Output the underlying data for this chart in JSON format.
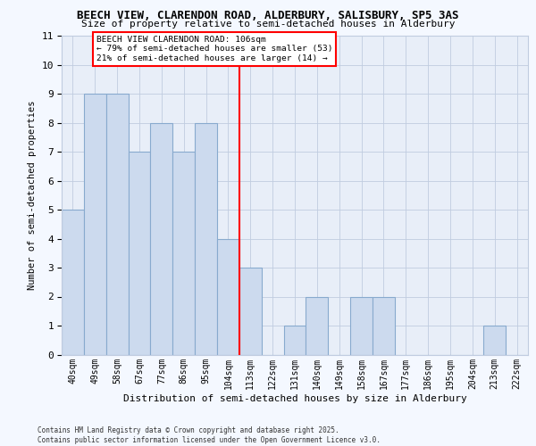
{
  "title1": "BEECH VIEW, CLARENDON ROAD, ALDERBURY, SALISBURY, SP5 3AS",
  "title2": "Size of property relative to semi-detached houses in Alderbury",
  "xlabel": "Distribution of semi-detached houses by size in Alderbury",
  "ylabel": "Number of semi-detached properties",
  "categories": [
    "40sqm",
    "49sqm",
    "58sqm",
    "67sqm",
    "77sqm",
    "86sqm",
    "95sqm",
    "104sqm",
    "113sqm",
    "122sqm",
    "131sqm",
    "140sqm",
    "149sqm",
    "158sqm",
    "167sqm",
    "177sqm",
    "186sqm",
    "195sqm",
    "204sqm",
    "213sqm",
    "222sqm"
  ],
  "values": [
    5,
    9,
    9,
    7,
    8,
    7,
    8,
    4,
    3,
    0,
    1,
    2,
    0,
    2,
    2,
    0,
    0,
    0,
    0,
    1,
    0
  ],
  "bar_color": "#ccdaee",
  "bar_edge_color": "#88aace",
  "red_line_x": 7.5,
  "annotation_title": "BEECH VIEW CLARENDON ROAD: 106sqm",
  "annotation_line1": "← 79% of semi-detached houses are smaller (53)",
  "annotation_line2": "21% of semi-detached houses are larger (14) →",
  "ylim": [
    0,
    11
  ],
  "yticks": [
    0,
    1,
    2,
    3,
    4,
    5,
    6,
    7,
    8,
    9,
    10,
    11
  ],
  "footer": "Contains HM Land Registry data © Crown copyright and database right 2025.\nContains public sector information licensed under the Open Government Licence v3.0.",
  "fig_bg_color": "#f4f8ff",
  "plot_bg_color": "#e8eef8",
  "grid_color": "#c0cce0"
}
